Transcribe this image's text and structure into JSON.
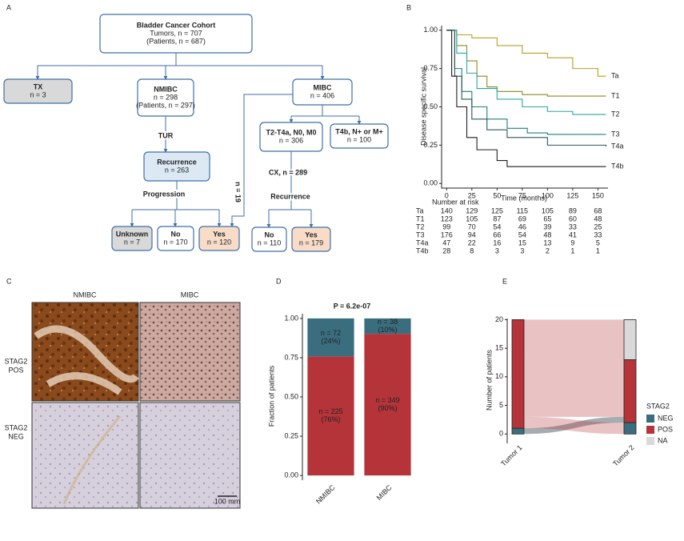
{
  "panel_letters": [
    "A",
    "B",
    "C",
    "D",
    "E"
  ],
  "flowchart": {
    "nodes": [
      {
        "lines": [
          "Bladder Cancer Cohort",
          "Tumors, n = 707",
          "(Patients, n = 687)"
        ]
      },
      {
        "lines": [
          "TX",
          "n = 3"
        ]
      },
      {
        "lines": [
          "NMIBC",
          "n = 298",
          "(Patients, n = 297)"
        ]
      },
      {
        "lines": [
          "MIBC",
          "n = 406"
        ]
      },
      {
        "lines": [
          "Recurrence",
          "n = 263"
        ]
      },
      {
        "lines": [
          "Unknown",
          "n = 7"
        ]
      },
      {
        "lines": [
          "No",
          "n = 170"
        ]
      },
      {
        "lines": [
          "Yes",
          "n = 120"
        ]
      },
      {
        "lines": [
          "T2-T4a, N0, M0",
          "n = 306"
        ]
      },
      {
        "lines": [
          "T4b, N+ or M+",
          "n = 100"
        ]
      },
      {
        "lines": [
          "No",
          "n = 110"
        ]
      },
      {
        "lines": [
          "Yes",
          "n = 179"
        ]
      }
    ],
    "labels": [
      "TUR",
      "Progression",
      "CX, n = 289",
      "Recurrence",
      "n = 19"
    ]
  },
  "micrographs": {
    "columns": [
      "NMIBC",
      "MIBC"
    ],
    "rows": [
      [
        "STAG2",
        "POS"
      ],
      [
        "STAG2",
        "NEG"
      ]
    ],
    "scale_bar": "100 mm"
  },
  "chart_data": [
    {
      "type": "survival",
      "ylabel": "Disease specific survival",
      "xlabel": "Time (months)",
      "xlim": [
        -5,
        160
      ],
      "xticks": [
        0,
        25,
        50,
        75,
        100,
        125,
        150
      ],
      "ylim": [
        -0.03,
        1.03
      ],
      "yticks": [
        {
          "value": 0,
          "label": "0.00"
        },
        {
          "value": 0.25,
          "label": "0.25"
        },
        {
          "value": 0.5,
          "label": "0.50"
        },
        {
          "value": 0.75,
          "label": "0.75"
        },
        {
          "value": 1,
          "label": "1.00"
        }
      ],
      "risk_title": "Number at risk",
      "series": [
        {
          "name": "Ta",
          "color": "#b89f22",
          "x": [
            0,
            10,
            25,
            50,
            75,
            100,
            125,
            150,
            158
          ],
          "values": [
            1,
            0.97,
            0.95,
            0.9,
            0.85,
            0.82,
            0.75,
            0.7,
            0.7
          ],
          "at_risk": [
            140,
            129,
            125,
            115,
            105,
            89,
            68
          ]
        },
        {
          "name": "T1",
          "color": "#8c8a1e",
          "x": [
            0,
            10,
            20,
            30,
            40,
            50,
            75,
            100,
            158
          ],
          "values": [
            1,
            0.9,
            0.8,
            0.7,
            0.63,
            0.6,
            0.58,
            0.57,
            0.57
          ],
          "at_risk": [
            123,
            105,
            87,
            69,
            65,
            60,
            48
          ]
        },
        {
          "name": "T2",
          "color": "#2aa6a6",
          "x": [
            0,
            10,
            20,
            30,
            50,
            75,
            100,
            125,
            158
          ],
          "values": [
            1,
            0.85,
            0.72,
            0.62,
            0.55,
            0.5,
            0.47,
            0.45,
            0.45
          ],
          "at_risk": [
            99,
            70,
            54,
            46,
            39,
            33,
            25
          ]
        },
        {
          "name": "T3",
          "color": "#1d7f80",
          "x": [
            0,
            8,
            15,
            25,
            40,
            60,
            80,
            100,
            158
          ],
          "values": [
            1,
            0.75,
            0.6,
            0.5,
            0.42,
            0.36,
            0.33,
            0.32,
            0.32
          ],
          "at_risk": [
            176,
            94,
            66,
            54,
            48,
            41,
            33
          ]
        },
        {
          "name": "T4a",
          "color": "#2c5656",
          "x": [
            0,
            8,
            15,
            25,
            40,
            60,
            100,
            158
          ],
          "values": [
            1,
            0.7,
            0.55,
            0.42,
            0.35,
            0.3,
            0.25,
            0.24
          ],
          "at_risk": [
            47,
            22,
            16,
            15,
            13,
            9,
            5
          ]
        },
        {
          "name": "T4b",
          "color": "#1e1e1e",
          "x": [
            0,
            5,
            10,
            20,
            30,
            50,
            60,
            158
          ],
          "values": [
            1,
            0.7,
            0.5,
            0.3,
            0.22,
            0.15,
            0.11,
            0.11
          ],
          "at_risk": [
            28,
            8,
            3,
            3,
            2,
            1,
            1
          ]
        }
      ]
    },
    {
      "type": "bar",
      "stacked": true,
      "title": "P = 6.2e-07",
      "ylabel": "Fraction of patients",
      "categories": [
        "NMIBC",
        "MIBC"
      ],
      "ylim": [
        -0.03,
        1.03
      ],
      "yticks": [
        {
          "value": 0,
          "label": "0.00"
        },
        {
          "value": 0.25,
          "label": "0.25"
        },
        {
          "value": 0.5,
          "label": "0.50"
        },
        {
          "value": 0.75,
          "label": "0.75"
        },
        {
          "value": 1,
          "label": "1.00"
        }
      ],
      "series": [
        {
          "name": "POS",
          "color": "#b5343a",
          "values": [
            0.758,
            0.902
          ],
          "count_labels": [
            "n = 225",
            "n = 349"
          ],
          "value_labels": [
            "(76%)",
            "(90%)"
          ]
        },
        {
          "name": "NEG",
          "color": "#3a6e7f",
          "values": [
            0.242,
            0.098
          ],
          "count_labels": [
            "n = 72",
            "n = 38"
          ],
          "value_labels": [
            "(24%)",
            "(10%)"
          ]
        }
      ]
    },
    {
      "type": "alluvial",
      "ylabel": "Number of patients",
      "categories": [
        "Tumor 1",
        "Tumor 2"
      ],
      "ylim": [
        -0.8,
        20.2
      ],
      "yticks": [
        0,
        5,
        10,
        15,
        20
      ],
      "legend_title": "STAG2",
      "series": [
        {
          "name": "NEG",
          "color": "#3a6e7f",
          "values": [
            1,
            2
          ]
        },
        {
          "name": "POS",
          "color": "#b5343a",
          "values": [
            19,
            11
          ]
        },
        {
          "name": "NA",
          "color": "#d9d9d9",
          "values": [
            0,
            7
          ]
        }
      ],
      "flows": [
        {
          "from": "NEG",
          "to": "POS",
          "value": 1
        },
        {
          "from": "POS",
          "to": "NEG",
          "value": 2
        },
        {
          "from": "POS",
          "to": "POS",
          "value": 10
        },
        {
          "from": "POS",
          "to": "NA",
          "value": 7
        }
      ]
    }
  ]
}
